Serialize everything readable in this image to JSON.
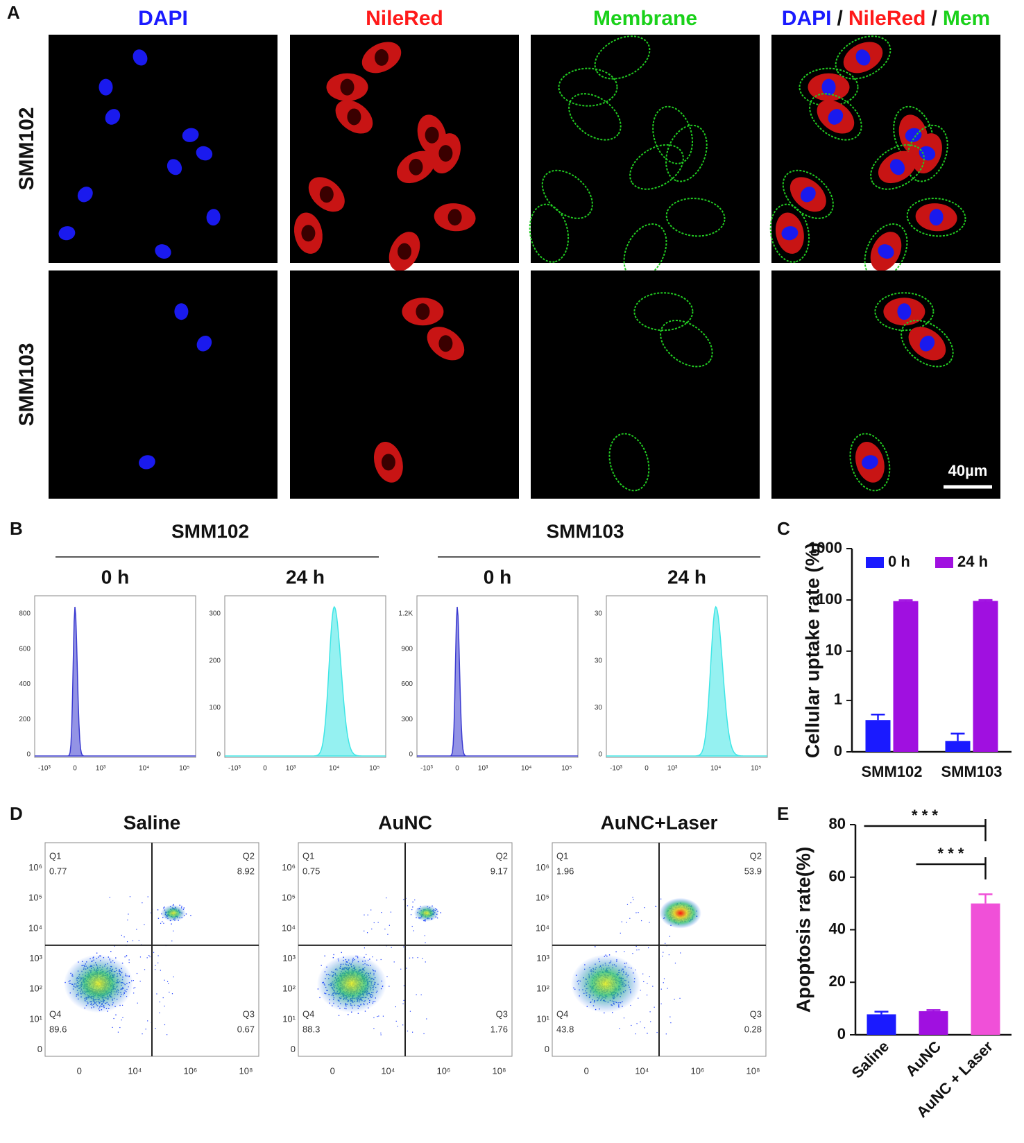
{
  "panel_labels": {
    "a": "A",
    "b": "B",
    "c": "C",
    "d": "D",
    "e": "E"
  },
  "panel_a": {
    "channels": [
      {
        "label": "DAPI",
        "color": "#1a1aff"
      },
      {
        "label": "NileRed",
        "color": "#ff1a1a"
      },
      {
        "label": "Membrane",
        "color": "#1ad11a"
      }
    ],
    "merge": [
      {
        "label": "DAPI",
        "color": "#1a1aff"
      },
      {
        "label": "/",
        "color": "#111111"
      },
      {
        "label": "NileRed",
        "color": "#ff1a1a"
      },
      {
        "label": "/",
        "color": "#111111"
      },
      {
        "label": "Mem",
        "color": "#1ad11a"
      }
    ],
    "rows": [
      "SMM102",
      "SMM103"
    ],
    "scale_bar": "40µm"
  },
  "panel_b": {
    "groups": [
      {
        "name": "SMM102",
        "times": [
          "0 h",
          "24 h"
        ]
      },
      {
        "name": "SMM103",
        "times": [
          "0 h",
          "24 h"
        ]
      }
    ],
    "histograms": [
      {
        "color": "#3a3ad0",
        "yticks": [
          "0",
          "200",
          "400",
          "600",
          "800"
        ]
      },
      {
        "color": "#3ee6e6",
        "yticks": [
          "0",
          "100",
          "200",
          "300"
        ]
      },
      {
        "color": "#3a3ad0",
        "yticks": [
          "0",
          "300",
          "600",
          "900",
          "1.2K"
        ]
      },
      {
        "color": "#3ee6e6",
        "yticks": [
          "0",
          "30",
          "30",
          "30"
        ]
      }
    ],
    "xticks": [
      "-10³",
      "0",
      "10³",
      "10⁴",
      "10⁵"
    ]
  },
  "panel_d": {
    "plots": [
      {
        "title": "Saline",
        "quadrants": [
          [
            "Q1",
            "0.77"
          ],
          [
            "Q2",
            "8.92"
          ],
          [
            "Q3",
            "0.67"
          ],
          [
            "Q4",
            "89.6"
          ]
        ]
      },
      {
        "title": "AuNC",
        "quadrants": [
          [
            "Q1",
            "0.75"
          ],
          [
            "Q2",
            "9.17"
          ],
          [
            "Q3",
            "1.76"
          ],
          [
            "Q4",
            "88.3"
          ]
        ]
      },
      {
        "title": "AuNC+Laser",
        "quadrants": [
          [
            "Q1",
            "1.96"
          ],
          [
            "Q2",
            "53.9"
          ],
          [
            "Q3",
            "0.28"
          ],
          [
            "Q4",
            "43.8"
          ]
        ]
      }
    ],
    "yticks": [
      "0",
      "10¹",
      "10²",
      "10³",
      "10⁴",
      "10⁵",
      "10⁶"
    ],
    "xticks": [
      "0",
      "10⁴",
      "10⁶",
      "10⁸"
    ]
  },
  "chart_data": [
    {
      "type": "bar",
      "categories": [
        "SMM102",
        "SMM103"
      ],
      "series": [
        {
          "name": "0 h",
          "color": "#1a1aff",
          "values": [
            0.35,
            0.07
          ],
          "errors": [
            0.13,
            0.07
          ]
        },
        {
          "name": "24 h",
          "color": "#a010e0",
          "values": [
            95,
            96
          ],
          "errors": [
            4,
            4
          ]
        }
      ],
      "ylabel": "Cellular uptake rate (%)",
      "ylim": [
        0,
        1000
      ],
      "yticks": [
        0,
        1,
        10,
        100,
        1000
      ],
      "yscale": "symlog",
      "legend": "top-right"
    },
    {
      "type": "bar",
      "categories": [
        "Saline",
        "AuNC",
        "AuNC + Laser"
      ],
      "values": [
        7.8,
        9,
        50
      ],
      "errors": [
        1,
        0.4,
        3.5
      ],
      "colors": [
        "#1a1aff",
        "#a010e0",
        "#f050d8"
      ],
      "ylabel": "Apoptosis rate(%)",
      "ylim": [
        0,
        80
      ],
      "yticks": [
        0,
        20,
        40,
        60,
        80
      ],
      "annotations": [
        {
          "text": "* * *",
          "from": 0,
          "to": 2
        },
        {
          "text": "* * *",
          "from": 1,
          "to": 2
        }
      ]
    }
  ]
}
